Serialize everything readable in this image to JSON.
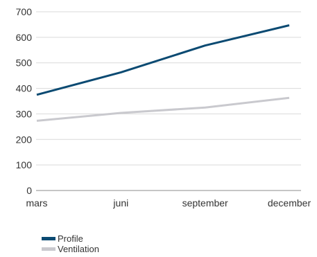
{
  "chart_data": {
    "type": "line",
    "categories": [
      "mars",
      "juni",
      "september",
      "december"
    ],
    "series": [
      {
        "name": "Profile",
        "values": [
          375,
          463,
          568,
          647
        ],
        "color": "#0b4a72"
      },
      {
        "name": "Ventilation",
        "values": [
          273,
          304,
          325,
          363
        ],
        "color": "#c9c9ce"
      }
    ],
    "yticks": [
      "0",
      "100",
      "200",
      "300",
      "400",
      "500",
      "600",
      "700"
    ],
    "ylim": [
      0,
      700
    ],
    "grid": true,
    "legend_position": "bottom-left",
    "grid_color": "#d9d9d9",
    "axis_color": "#8c8c8c"
  }
}
